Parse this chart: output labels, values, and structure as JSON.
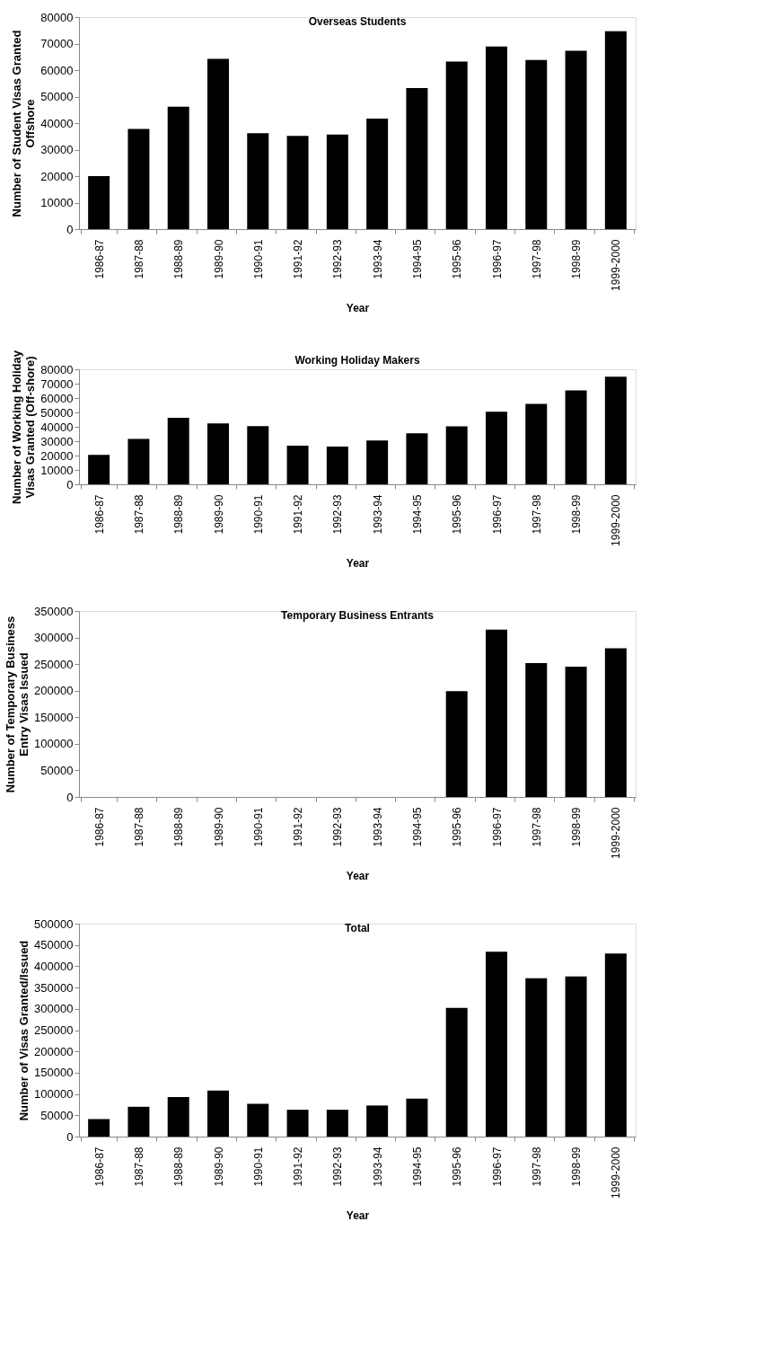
{
  "chart_data": [
    {
      "type": "bar",
      "title": "Overseas Students",
      "xlabel": "Year",
      "ylabel": "Number of Student Visas Granted\nOffshore",
      "categories": [
        "1986-87",
        "1987-88",
        "1988-89",
        "1989-90",
        "1990-91",
        "1991-92",
        "1992-93",
        "1993-94",
        "1994-95",
        "1995-96",
        "1996-97",
        "1997-98",
        "1998-99",
        "1999-2000"
      ],
      "values": [
        20000,
        37800,
        46200,
        64200,
        36200,
        35200,
        35700,
        41700,
        53200,
        63200,
        68900,
        63800,
        67300,
        74700
      ],
      "color": "#000000",
      "ylim": [
        0,
        80000
      ],
      "yticks": [
        0,
        10000,
        20000,
        30000,
        40000,
        50000,
        60000,
        70000,
        80000
      ],
      "grid": false
    },
    {
      "type": "bar",
      "title": "Working Holiday Makers",
      "xlabel": "Year",
      "ylabel": "Number of Working Holiday\nVisas Granted (Off-shore)",
      "categories": [
        "1986-87",
        "1987-88",
        "1988-89",
        "1989-90",
        "1990-91",
        "1991-92",
        "1992-93",
        "1993-94",
        "1994-95",
        "1995-96",
        "1996-97",
        "1997-98",
        "1998-99",
        "1999-2000"
      ],
      "values": [
        20500,
        31600,
        46300,
        42400,
        40400,
        26800,
        26300,
        30400,
        35500,
        40300,
        50400,
        55900,
        65300,
        74800
      ],
      "color": "#000000",
      "ylim": [
        0,
        80000
      ],
      "yticks": [
        0,
        10000,
        20000,
        30000,
        40000,
        50000,
        60000,
        70000,
        80000
      ],
      "grid": false
    },
    {
      "type": "bar",
      "title": "Temporary Business Entrants",
      "xlabel": "Year",
      "ylabel": "Number of Temporary Business\nEntry Visas Issued",
      "categories": [
        "1986-87",
        "1987-88",
        "1988-89",
        "1989-90",
        "1990-91",
        "1991-92",
        "1992-93",
        "1993-94",
        "1994-95",
        "1995-96",
        "1996-97",
        "1997-98",
        "1998-99",
        "1999-2000"
      ],
      "values": [
        null,
        null,
        null,
        null,
        null,
        null,
        null,
        null,
        null,
        199000,
        315000,
        252000,
        245000,
        280000
      ],
      "color": "#000000",
      "ylim": [
        0,
        350000
      ],
      "yticks": [
        0,
        50000,
        100000,
        150000,
        200000,
        250000,
        300000,
        350000
      ],
      "grid": false
    },
    {
      "type": "bar",
      "title": "Total",
      "xlabel": "Year",
      "ylabel": "Number of Visas Granted/Issued",
      "categories": [
        "1986-87",
        "1987-88",
        "1988-89",
        "1989-90",
        "1990-91",
        "1991-92",
        "1992-93",
        "1993-94",
        "1994-95",
        "1995-96",
        "1996-97",
        "1997-98",
        "1998-99",
        "1999-2000"
      ],
      "values": [
        41000,
        70000,
        93000,
        108000,
        77000,
        63000,
        63000,
        73000,
        89000,
        302000,
        434000,
        372000,
        376000,
        430000
      ],
      "color": "#000000",
      "ylim": [
        0,
        500000
      ],
      "yticks": [
        0,
        50000,
        100000,
        150000,
        200000,
        250000,
        300000,
        350000,
        400000,
        450000,
        500000
      ],
      "grid": false
    }
  ]
}
